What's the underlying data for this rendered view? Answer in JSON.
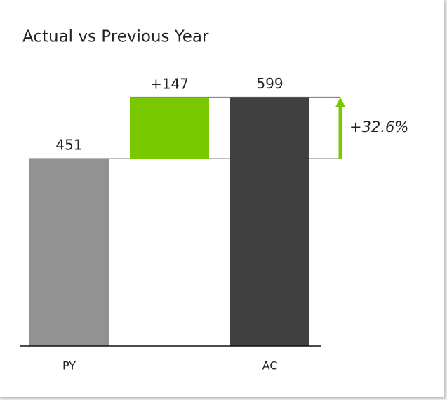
{
  "chart_data": {
    "type": "waterfall",
    "title": "Actual vs Previous Year",
    "categories": [
      "PY",
      null,
      "AC"
    ],
    "values": [
      451,
      147,
      599
    ],
    "value_labels": [
      "451",
      "+147",
      "599"
    ],
    "colors": [
      "#929292",
      "#7ac800",
      "#404040"
    ],
    "variance": {
      "value": 32.6,
      "label": "+32.6%",
      "color": "#7ac800"
    },
    "ylim": [
      0,
      700
    ]
  }
}
